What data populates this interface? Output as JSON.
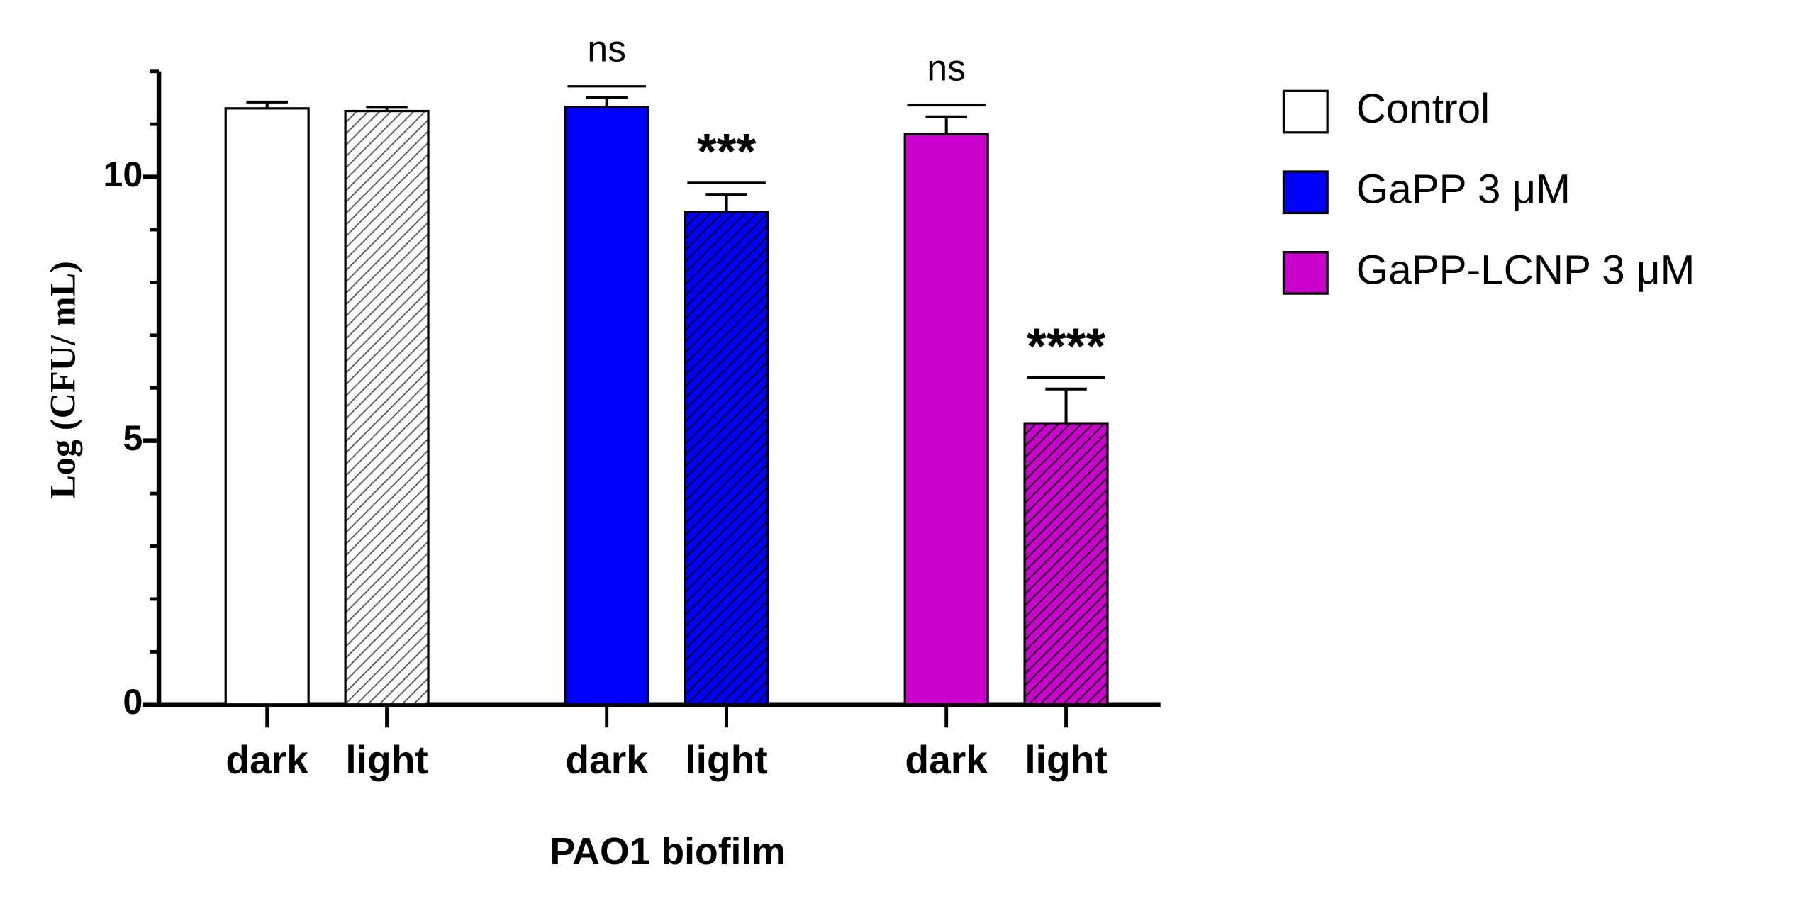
{
  "chart_data": {
    "type": "bar",
    "x_label": "PAO1 biofilm",
    "y_label": "Log (CFU/ mL)",
    "categories": [
      "dark",
      "light"
    ],
    "hatched": [
      false,
      true
    ],
    "ylim": [
      0,
      12
    ],
    "yticks": [
      0,
      5,
      10
    ],
    "yminor": [
      1,
      2,
      3,
      4,
      6,
      7,
      8,
      9,
      11,
      12
    ],
    "series": [
      {
        "name": "Control",
        "color": "#ffffff",
        "hatch_color": "#555555",
        "values": [
          11.3,
          11.25
        ],
        "errors": [
          0.12,
          0.07
        ]
      },
      {
        "name": "GaPP 3 μM",
        "color": "#0000ff",
        "hatch_color": "#000000",
        "values": [
          11.33,
          9.34
        ],
        "errors": [
          0.17,
          0.33
        ],
        "significance": [
          "ns",
          "***"
        ]
      },
      {
        "name": "GaPP-LCNP 3 μM",
        "color": "#cc00cc",
        "hatch_color": "#000000",
        "values": [
          10.81,
          5.33
        ],
        "errors": [
          0.33,
          0.65
        ],
        "significance": [
          "ns",
          "****"
        ]
      }
    ]
  }
}
